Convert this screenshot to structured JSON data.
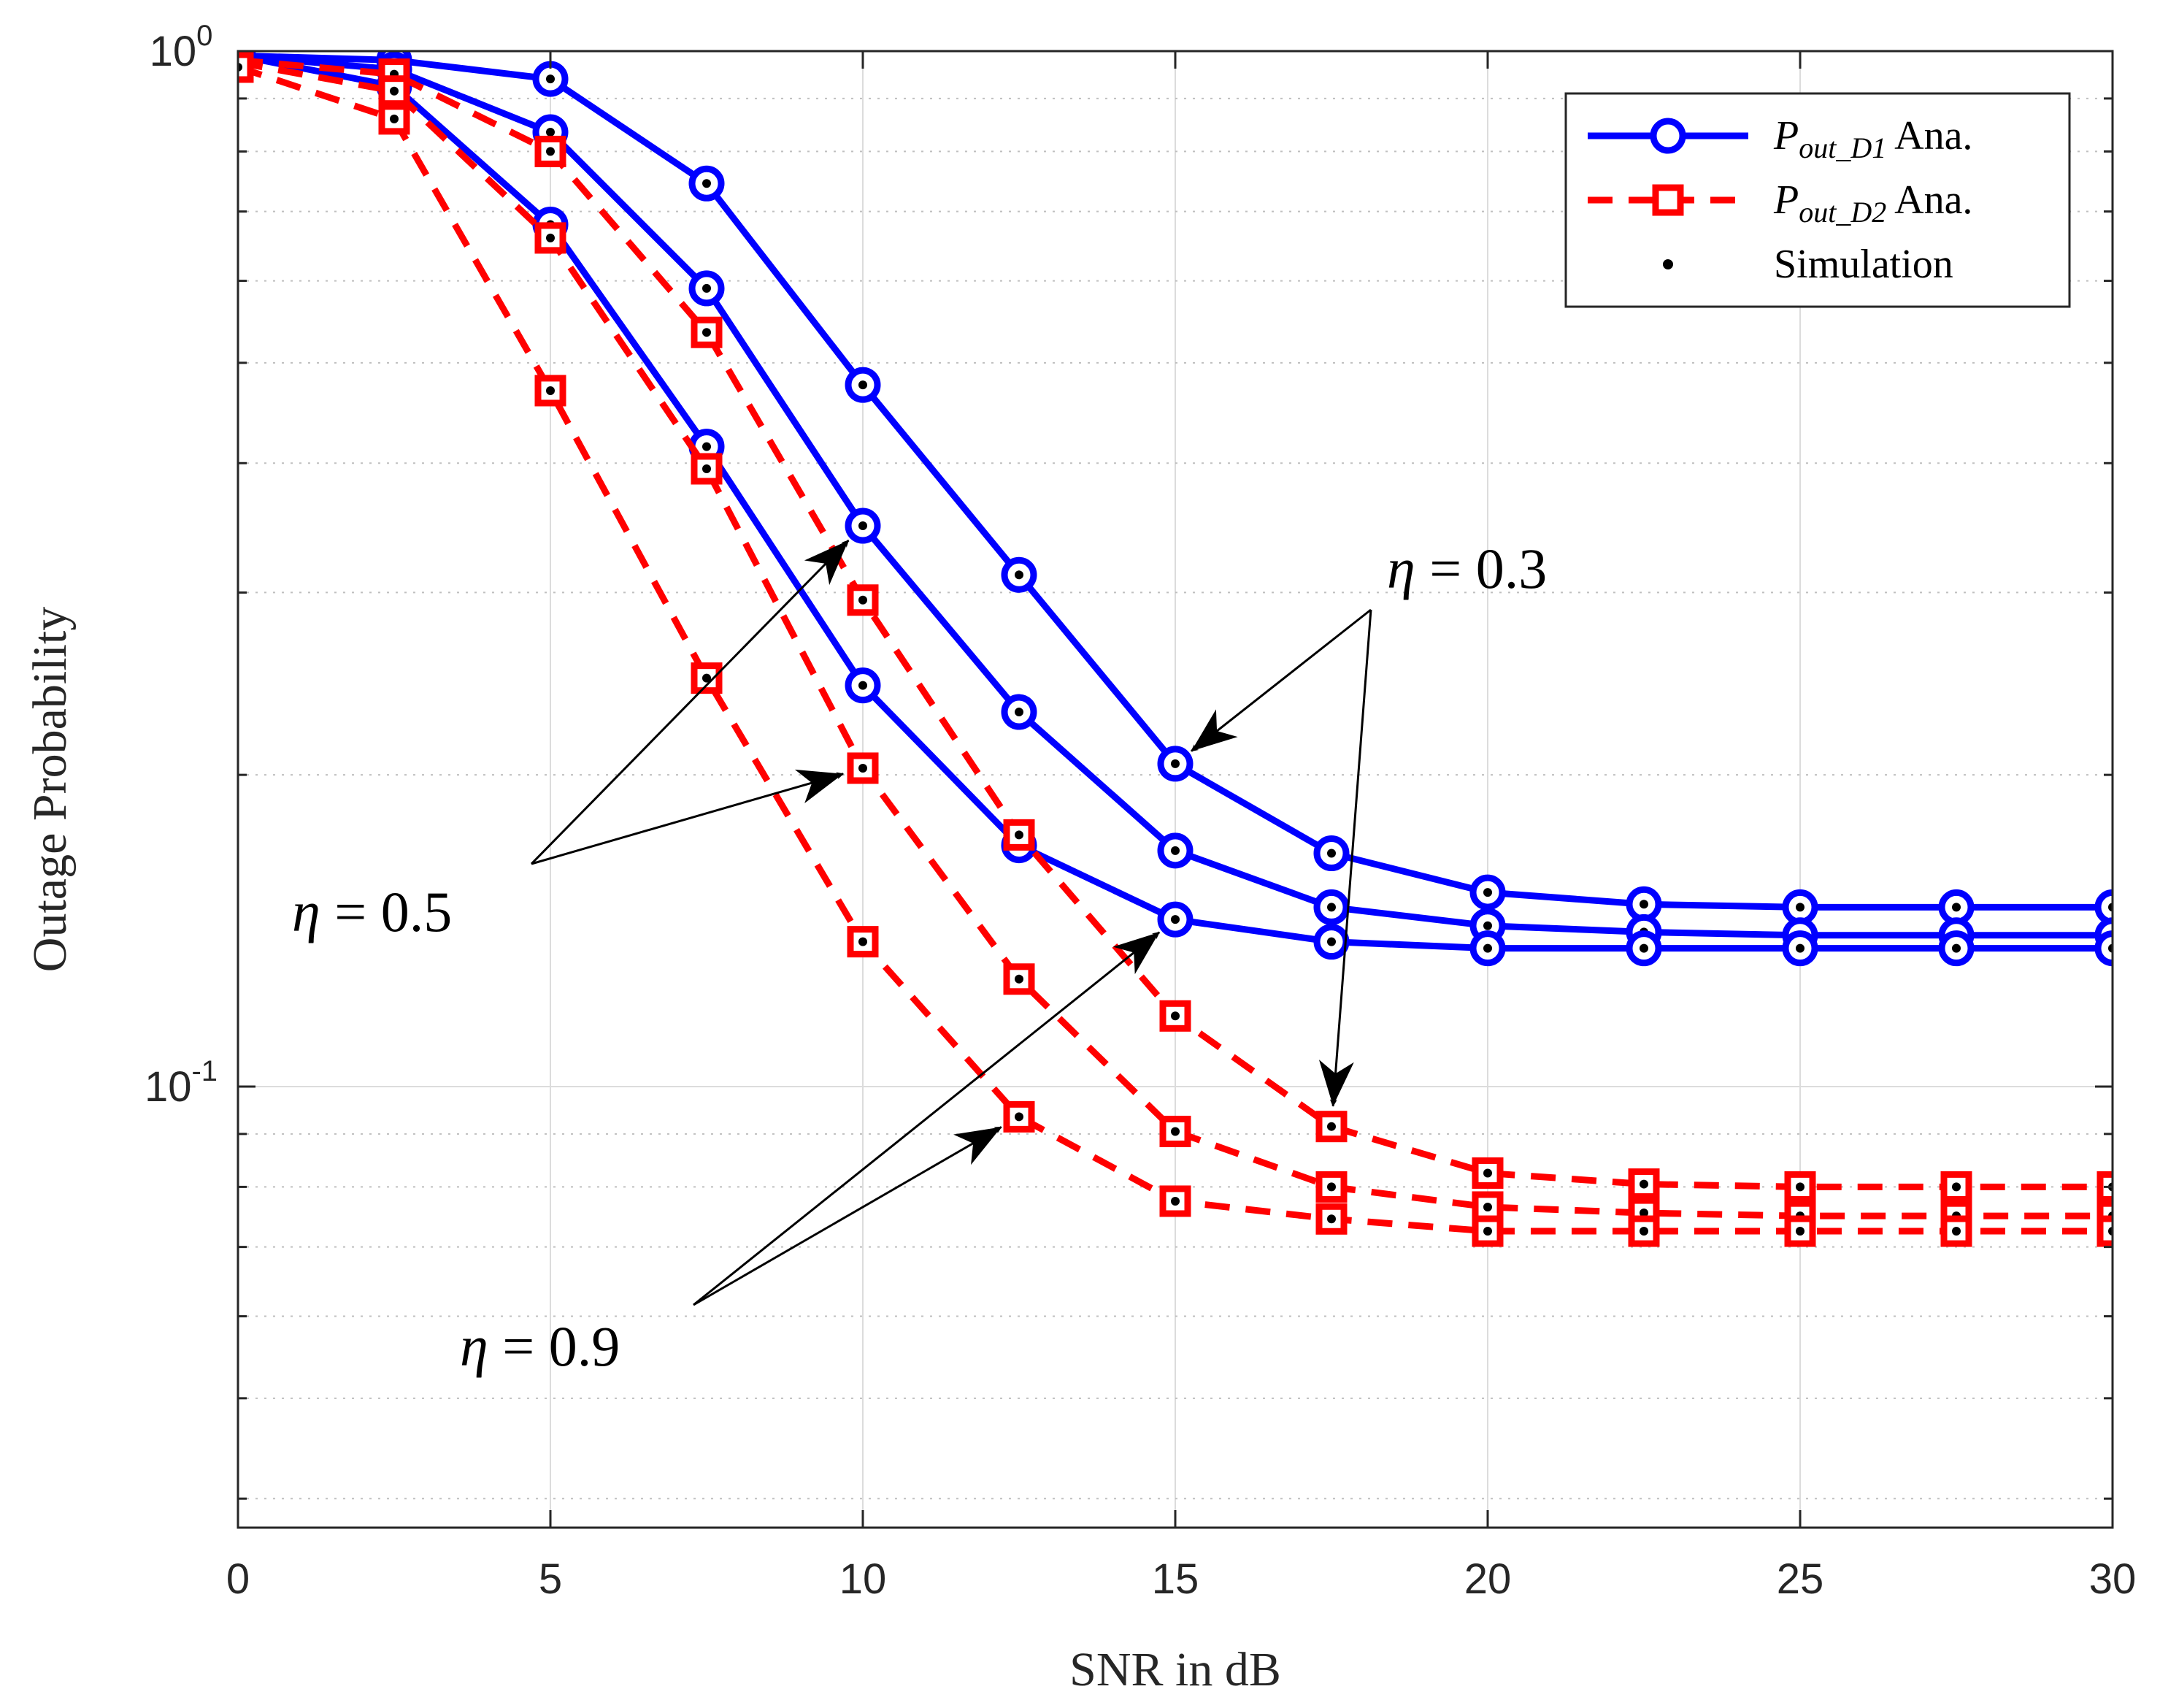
{
  "chart_data": {
    "type": "line",
    "xlabel": "SNR in dB",
    "ylabel": "Outage Probability",
    "xlim": [
      0,
      30
    ],
    "ylim": [
      0.0375,
      1.0
    ],
    "yscale": "log",
    "grid": true,
    "x_ticks": [
      0,
      5,
      10,
      15,
      20,
      25,
      30
    ],
    "x_tick_labels": [
      "0",
      "5",
      "10",
      "15",
      "20",
      "25",
      "30"
    ],
    "y_ticks": [
      {
        "value": 1.0,
        "base": "10",
        "exp": "0"
      },
      {
        "value": 0.1,
        "base": "10",
        "exp": "-1"
      }
    ],
    "x": [
      0,
      2.5,
      5,
      7.5,
      10,
      12.5,
      15,
      17.5,
      20,
      22.5,
      25,
      27.5,
      30
    ],
    "legend": {
      "placement": "top-right",
      "entries": [
        {
          "label_main": "P",
          "label_sub": "out_D1",
          "label_rest": " Ana.",
          "style": "solid-circle",
          "color": "#0000ff"
        },
        {
          "label_main": "P",
          "label_sub": "out_D2",
          "label_rest": " Ana.",
          "style": "dashed-square",
          "color": "#ff0000"
        },
        {
          "label_main": "Simulation",
          "label_sub": "",
          "label_rest": "",
          "style": "dot",
          "color": "#000000"
        }
      ]
    },
    "series": [
      {
        "group": "P_out_D1 Ana.",
        "eta": "0.3",
        "color": "#0000ff",
        "dash": "solid",
        "marker": "circle",
        "values": [
          0.99,
          0.98,
          0.94,
          0.745,
          0.476,
          0.312,
          0.205,
          0.168,
          0.154,
          0.15,
          0.149,
          0.149,
          0.149
        ]
      },
      {
        "group": "P_out_D1 Ana.",
        "eta": "0.5",
        "color": "#0000ff",
        "dash": "solid",
        "marker": "circle",
        "values": [
          0.99,
          0.96,
          0.835,
          0.59,
          0.348,
          0.23,
          0.169,
          0.149,
          0.143,
          0.141,
          0.14,
          0.14,
          0.14
        ]
      },
      {
        "group": "P_out_D1 Ana.",
        "eta": "0.9",
        "color": "#0000ff",
        "dash": "solid",
        "marker": "circle",
        "values": [
          0.99,
          0.925,
          0.68,
          0.415,
          0.244,
          0.171,
          0.145,
          0.138,
          0.136,
          0.136,
          0.136,
          0.136,
          0.136
        ]
      },
      {
        "group": "P_out_D2 Ana.",
        "eta": "0.3",
        "color": "#ff0000",
        "dash": "dashed",
        "marker": "square",
        "values": [
          0.98,
          0.95,
          0.8,
          0.535,
          0.295,
          0.175,
          0.117,
          0.0915,
          0.0825,
          0.0805,
          0.08,
          0.08,
          0.08
        ]
      },
      {
        "group": "P_out_D2 Ana.",
        "eta": "0.5",
        "color": "#ff0000",
        "dash": "dashed",
        "marker": "square",
        "values": [
          0.975,
          0.915,
          0.66,
          0.395,
          0.203,
          0.127,
          0.0905,
          0.08,
          0.0765,
          0.0755,
          0.075,
          0.075,
          0.075
        ]
      },
      {
        "group": "P_out_D2 Ana.",
        "eta": "0.9",
        "color": "#ff0000",
        "dash": "dashed",
        "marker": "square",
        "values": [
          0.965,
          0.86,
          0.47,
          0.248,
          0.138,
          0.0935,
          0.0775,
          0.0745,
          0.0725,
          0.0725,
          0.0725,
          0.0725,
          0.0725
        ]
      }
    ],
    "annotations": [
      {
        "label_symbol": "η",
        "label_rest": " = 0.3",
        "targets": [
          {
            "series": 0,
            "x": 15
          },
          {
            "series": 3,
            "x": 17.5
          }
        ]
      },
      {
        "label_symbol": "η",
        "label_rest": " = 0.5",
        "targets": [
          {
            "series": 1,
            "x": 10
          },
          {
            "series": 4,
            "x": 10
          }
        ]
      },
      {
        "label_symbol": "η",
        "label_rest": " = 0.9",
        "targets": [
          {
            "series": 2,
            "x": 15
          },
          {
            "series": 5,
            "x": 12.5
          }
        ]
      }
    ]
  }
}
